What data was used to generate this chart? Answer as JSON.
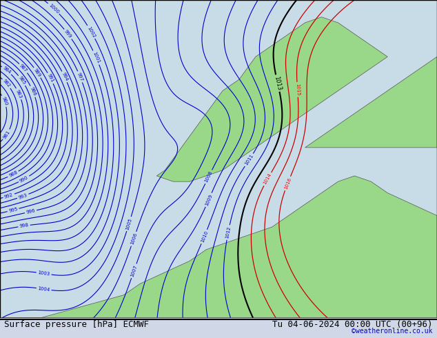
{
  "title_left": "Surface pressure [hPa] ECMWF",
  "title_right": "Tu 04-06-2024 00:00 UTC (00+96)",
  "copyright": "©weatheronline.co.uk",
  "bg_color": "#e8e8e8",
  "land_color": "#90ee90",
  "water_color": "#d0e8f0",
  "contour_color_blue": "#0000cc",
  "contour_color_black": "#000000",
  "contour_color_red": "#cc0000",
  "pressure_min": 978,
  "pressure_max": 1016,
  "pressure_step": 1,
  "font_size_title": 9,
  "font_size_contour": 7,
  "fig_width": 6.34,
  "fig_height": 4.9,
  "dpi": 100
}
